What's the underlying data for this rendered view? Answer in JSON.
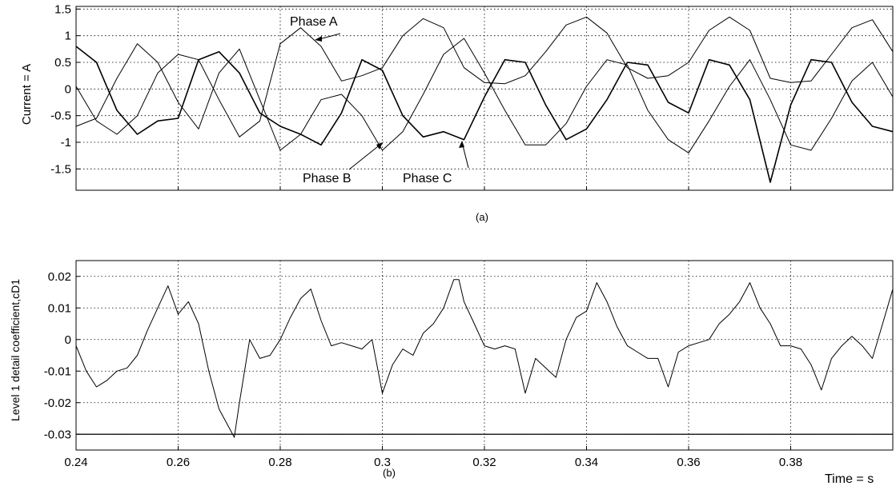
{
  "chart_data": [
    {
      "id": "a",
      "type": "line",
      "caption": "(a)",
      "ylabel": "Current = A",
      "xlim": [
        0.24,
        0.4
      ],
      "ylim": [
        -1.9,
        1.55
      ],
      "yticks": [
        -1.5,
        -1,
        -0.5,
        0,
        0.5,
        1,
        1.5
      ],
      "ytick_labels": [
        "-1.5",
        "-1",
        "-0.5",
        "0",
        "0.5",
        "1",
        "1.5"
      ],
      "xticks": [
        0.24,
        0.26,
        0.28,
        0.3,
        0.32,
        0.34,
        0.36,
        0.38,
        0.4
      ],
      "grid": true,
      "line_color": "#000000",
      "annotations": [
        "Phase A",
        "Phase B",
        "Phase C"
      ],
      "series": [
        {
          "name": "Phase A",
          "x": [
            0.24,
            0.244,
            0.248,
            0.252,
            0.256,
            0.26,
            0.264,
            0.268,
            0.272,
            0.276,
            0.28,
            0.284,
            0.288,
            0.292,
            0.296,
            0.3,
            0.304,
            0.308,
            0.312,
            0.316,
            0.32,
            0.324,
            0.328,
            0.332,
            0.336,
            0.34,
            0.344,
            0.348,
            0.352,
            0.356,
            0.36,
            0.364,
            0.368,
            0.372,
            0.376,
            0.38,
            0.384,
            0.388,
            0.392,
            0.396,
            0.4
          ],
          "y": [
            0.05,
            -0.6,
            -0.85,
            -0.5,
            0.3,
            0.65,
            0.55,
            -0.2,
            -0.9,
            -0.6,
            0.85,
            1.15,
            0.8,
            0.15,
            0.25,
            0.4,
            1.0,
            1.32,
            1.15,
            0.4,
            0.12,
            0.1,
            0.25,
            0.7,
            1.2,
            1.35,
            1.05,
            0.4,
            0.2,
            0.25,
            0.5,
            1.1,
            1.35,
            1.1,
            0.2,
            0.12,
            0.15,
            0.65,
            1.15,
            1.3,
            0.7
          ]
        },
        {
          "name": "Phase B",
          "x": [
            0.24,
            0.244,
            0.248,
            0.252,
            0.256,
            0.26,
            0.264,
            0.268,
            0.272,
            0.276,
            0.28,
            0.284,
            0.288,
            0.292,
            0.296,
            0.3,
            0.304,
            0.308,
            0.312,
            0.316,
            0.32,
            0.324,
            0.328,
            0.332,
            0.336,
            0.34,
            0.344,
            0.348,
            0.352,
            0.356,
            0.36,
            0.364,
            0.368,
            0.372,
            0.376,
            0.38,
            0.384,
            0.388,
            0.392,
            0.396,
            0.4
          ],
          "y": [
            -0.7,
            -0.55,
            0.2,
            0.85,
            0.5,
            -0.25,
            -0.75,
            0.3,
            0.75,
            -0.2,
            -1.15,
            -0.85,
            -0.2,
            -0.1,
            -0.5,
            -1.15,
            -0.8,
            -0.1,
            0.65,
            0.95,
            0.3,
            -0.4,
            -1.05,
            -1.05,
            -0.65,
            0.05,
            0.55,
            0.45,
            -0.4,
            -0.95,
            -1.2,
            -0.6,
            0.05,
            0.55,
            -0.2,
            -1.05,
            -1.15,
            -0.55,
            0.15,
            0.5,
            -0.15
          ]
        },
        {
          "name": "Phase C",
          "x": [
            0.24,
            0.244,
            0.248,
            0.252,
            0.256,
            0.26,
            0.264,
            0.268,
            0.272,
            0.276,
            0.28,
            0.284,
            0.288,
            0.292,
            0.296,
            0.3,
            0.304,
            0.308,
            0.312,
            0.316,
            0.32,
            0.324,
            0.328,
            0.332,
            0.336,
            0.34,
            0.344,
            0.348,
            0.352,
            0.356,
            0.36,
            0.364,
            0.368,
            0.372,
            0.376,
            0.38,
            0.384,
            0.388,
            0.392,
            0.396,
            0.4
          ],
          "y": [
            0.8,
            0.5,
            -0.4,
            -0.85,
            -0.6,
            -0.55,
            0.55,
            0.7,
            0.3,
            -0.45,
            -0.7,
            -0.85,
            -1.05,
            -0.45,
            0.55,
            0.35,
            -0.5,
            -0.9,
            -0.8,
            -0.95,
            -0.15,
            0.55,
            0.5,
            -0.3,
            -0.95,
            -0.75,
            -0.2,
            0.5,
            0.45,
            -0.25,
            -0.45,
            0.55,
            0.45,
            -0.2,
            -1.75,
            -0.3,
            0.55,
            0.5,
            -0.25,
            -0.7,
            -0.8
          ]
        }
      ]
    },
    {
      "id": "b",
      "type": "line",
      "caption": "(b)",
      "ylabel": "Level 1 detail coefficient,cD1",
      "xlabel": "Time = s",
      "xlim": [
        0.24,
        0.4
      ],
      "ylim": [
        -0.035,
        0.025
      ],
      "yticks": [
        -0.03,
        -0.02,
        -0.01,
        0,
        0.01,
        0.02
      ],
      "ytick_labels": [
        "-0.03",
        "-0.02",
        "-0.01",
        "0",
        "0.01",
        "0.02"
      ],
      "xticks": [
        0.24,
        0.26,
        0.28,
        0.3,
        0.32,
        0.34,
        0.36,
        0.38
      ],
      "xtick_labels": [
        "0.24",
        "0.26",
        "0.28",
        "0.3",
        "0.32",
        "0.34",
        "0.36",
        "0.38"
      ],
      "grid": true,
      "line_color": "#000000",
      "threshold": -0.03,
      "series": [
        {
          "x": [
            0.24,
            0.242,
            0.244,
            0.246,
            0.248,
            0.25,
            0.252,
            0.254,
            0.256,
            0.258,
            0.26,
            0.262,
            0.264,
            0.266,
            0.268,
            0.27,
            0.271,
            0.272,
            0.274,
            0.276,
            0.278,
            0.28,
            0.282,
            0.284,
            0.286,
            0.288,
            0.29,
            0.292,
            0.294,
            0.296,
            0.298,
            0.3,
            0.302,
            0.304,
            0.306,
            0.308,
            0.31,
            0.312,
            0.314,
            0.315,
            0.316,
            0.318,
            0.32,
            0.322,
            0.324,
            0.326,
            0.328,
            0.33,
            0.332,
            0.334,
            0.336,
            0.338,
            0.34,
            0.342,
            0.344,
            0.346,
            0.348,
            0.35,
            0.352,
            0.354,
            0.356,
            0.358,
            0.36,
            0.362,
            0.364,
            0.366,
            0.368,
            0.37,
            0.372,
            0.374,
            0.376,
            0.378,
            0.38,
            0.382,
            0.384,
            0.386,
            0.388,
            0.39,
            0.392,
            0.394,
            0.396,
            0.398,
            0.4
          ],
          "y": [
            -0.002,
            -0.01,
            -0.015,
            -0.013,
            -0.01,
            -0.009,
            -0.005,
            0.003,
            0.01,
            0.017,
            0.008,
            0.012,
            0.005,
            -0.01,
            -0.022,
            -0.028,
            -0.031,
            -0.02,
            0.0,
            -0.006,
            -0.005,
            0.0,
            0.007,
            0.013,
            0.016,
            0.006,
            -0.002,
            -0.001,
            -0.002,
            -0.003,
            0.0,
            -0.017,
            -0.008,
            -0.003,
            -0.005,
            0.002,
            0.005,
            0.01,
            0.019,
            0.019,
            0.012,
            0.005,
            -0.002,
            -0.003,
            -0.002,
            -0.003,
            -0.017,
            -0.006,
            -0.009,
            -0.012,
            0.0,
            0.007,
            0.009,
            0.018,
            0.012,
            0.004,
            -0.002,
            -0.004,
            -0.006,
            -0.006,
            -0.015,
            -0.004,
            -0.002,
            -0.001,
            0.0,
            0.005,
            0.008,
            0.012,
            0.018,
            0.01,
            0.005,
            -0.002,
            -0.002,
            -0.003,
            -0.008,
            -0.016,
            -0.006,
            -0.002,
            0.001,
            -0.002,
            -0.006,
            0.005,
            0.016
          ]
        }
      ]
    }
  ]
}
